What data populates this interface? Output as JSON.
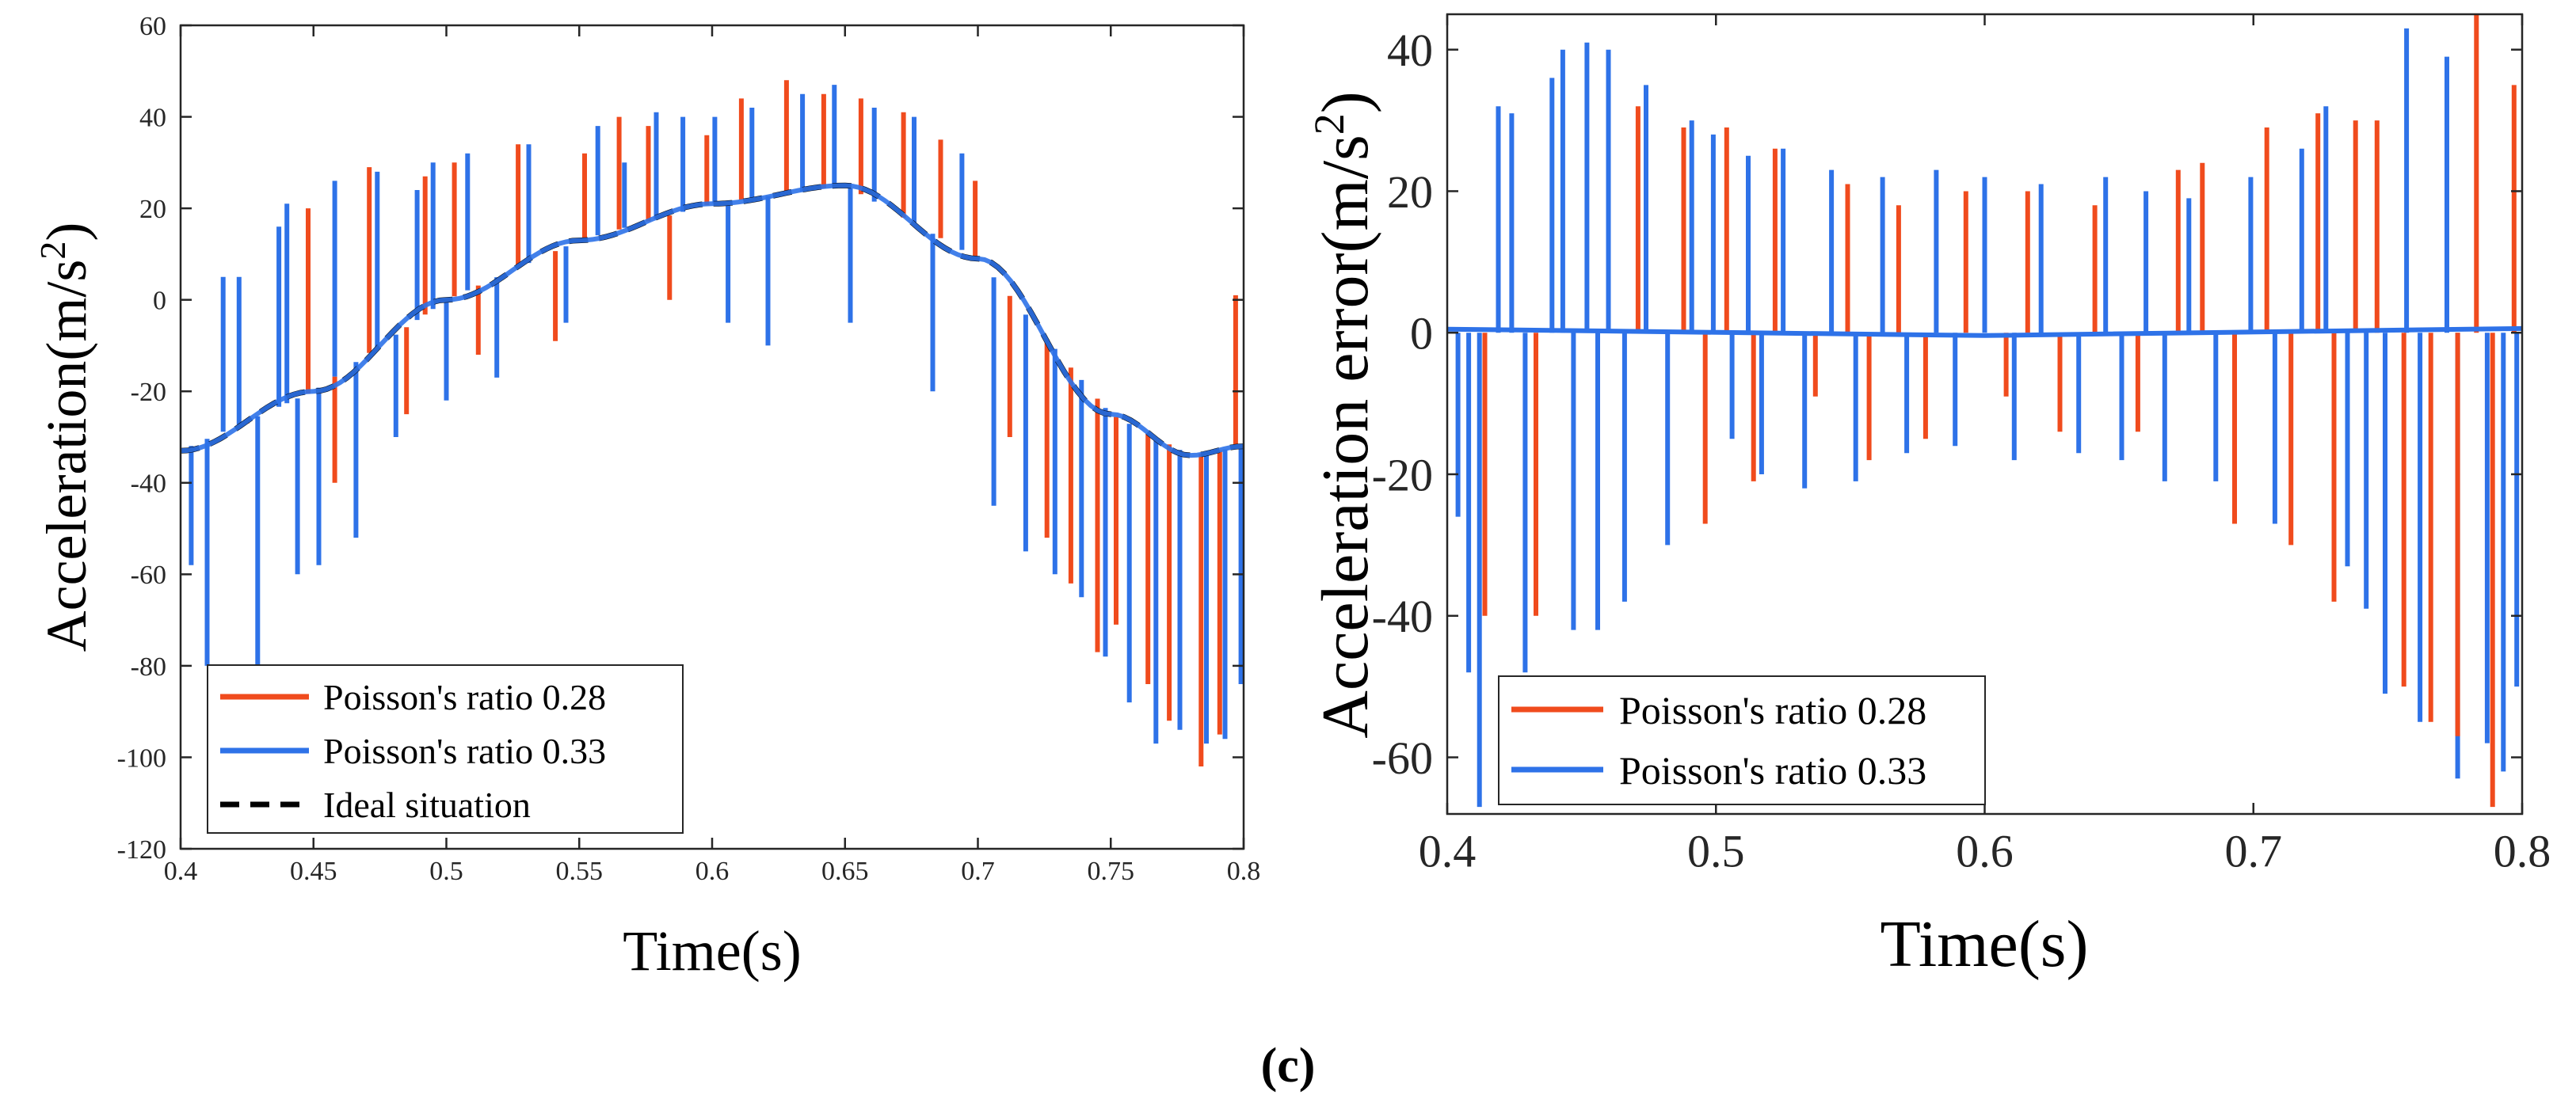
{
  "caption": "(c)",
  "colors": {
    "series_028": "#f04b1d",
    "series_033": "#2e72e8",
    "ideal": "#000000",
    "axis": "#262626"
  },
  "chart_data": [
    {
      "type": "line",
      "xlabel": "Time(s)",
      "ylabel": "Acceleration(m/s²)",
      "ylabel_main": "Acceleration(m/s",
      "ylabel_sup": "2",
      "ylabel_end": ")",
      "xlim": [
        0.4,
        0.8
      ],
      "ylim": [
        -120,
        60
      ],
      "xticks": [
        0.4,
        0.45,
        0.5,
        0.55,
        0.6,
        0.65,
        0.7,
        0.75,
        0.8
      ],
      "yticks": [
        -120,
        -100,
        -80,
        -60,
        -40,
        -20,
        0,
        20,
        40,
        60
      ],
      "grid": false,
      "legend": "bottom-left",
      "legend_entries": [
        "Poisson's ratio 0.28",
        "Poisson's ratio 0.33",
        "Ideal situation"
      ],
      "ideal_curve": {
        "name": "Ideal situation",
        "x": [
          0.4,
          0.45,
          0.5,
          0.55,
          0.6,
          0.65,
          0.7,
          0.75,
          0.78,
          0.8
        ],
        "y": [
          -33,
          -20,
          0,
          13,
          21,
          25,
          9,
          -25,
          -34,
          -32
        ]
      },
      "series": [
        {
          "name": "Poisson's ratio 0.28",
          "color": "#f04b1d",
          "spikes": [
            {
              "x": 0.425,
              "y": -27
            },
            {
              "x": 0.448,
              "y": 20
            },
            {
              "x": 0.458,
              "y": -40
            },
            {
              "x": 0.471,
              "y": 29
            },
            {
              "x": 0.485,
              "y": -25
            },
            {
              "x": 0.492,
              "y": 27
            },
            {
              "x": 0.503,
              "y": 30
            },
            {
              "x": 0.512,
              "y": -12
            },
            {
              "x": 0.527,
              "y": 34
            },
            {
              "x": 0.541,
              "y": -9
            },
            {
              "x": 0.552,
              "y": 32
            },
            {
              "x": 0.565,
              "y": 40
            },
            {
              "x": 0.576,
              "y": 38
            },
            {
              "x": 0.584,
              "y": 0
            },
            {
              "x": 0.598,
              "y": 36
            },
            {
              "x": 0.611,
              "y": 44
            },
            {
              "x": 0.628,
              "y": 48
            },
            {
              "x": 0.642,
              "y": 45
            },
            {
              "x": 0.656,
              "y": 44
            },
            {
              "x": 0.672,
              "y": 41
            },
            {
              "x": 0.686,
              "y": 35
            },
            {
              "x": 0.699,
              "y": 26
            },
            {
              "x": 0.712,
              "y": -30
            },
            {
              "x": 0.726,
              "y": -52
            },
            {
              "x": 0.735,
              "y": -62
            },
            {
              "x": 0.745,
              "y": -77
            },
            {
              "x": 0.752,
              "y": -71
            },
            {
              "x": 0.764,
              "y": -84
            },
            {
              "x": 0.772,
              "y": -92
            },
            {
              "x": 0.784,
              "y": -102
            },
            {
              "x": 0.791,
              "y": -95
            },
            {
              "x": 0.797,
              "y": 1
            }
          ]
        },
        {
          "name": "Poisson's ratio 0.33",
          "color": "#2e72e8",
          "spikes": [
            {
              "x": 0.404,
              "y": -58
            },
            {
              "x": 0.41,
              "y": -80
            },
            {
              "x": 0.416,
              "y": 5
            },
            {
              "x": 0.422,
              "y": 5
            },
            {
              "x": 0.429,
              "y": -80
            },
            {
              "x": 0.437,
              "y": 16
            },
            {
              "x": 0.44,
              "y": 21
            },
            {
              "x": 0.444,
              "y": -60
            },
            {
              "x": 0.452,
              "y": -58
            },
            {
              "x": 0.458,
              "y": 26
            },
            {
              "x": 0.466,
              "y": -52
            },
            {
              "x": 0.474,
              "y": 28
            },
            {
              "x": 0.481,
              "y": -30
            },
            {
              "x": 0.489,
              "y": 24
            },
            {
              "x": 0.495,
              "y": 30
            },
            {
              "x": 0.5,
              "y": -22
            },
            {
              "x": 0.508,
              "y": 32
            },
            {
              "x": 0.519,
              "y": -17
            },
            {
              "x": 0.531,
              "y": 34
            },
            {
              "x": 0.545,
              "y": -5
            },
            {
              "x": 0.557,
              "y": 38
            },
            {
              "x": 0.567,
              "y": 30
            },
            {
              "x": 0.579,
              "y": 41
            },
            {
              "x": 0.589,
              "y": 40
            },
            {
              "x": 0.601,
              "y": 40
            },
            {
              "x": 0.606,
              "y": -5
            },
            {
              "x": 0.615,
              "y": 42
            },
            {
              "x": 0.621,
              "y": -10
            },
            {
              "x": 0.634,
              "y": 45
            },
            {
              "x": 0.646,
              "y": 47
            },
            {
              "x": 0.652,
              "y": -5
            },
            {
              "x": 0.661,
              "y": 42
            },
            {
              "x": 0.676,
              "y": 40
            },
            {
              "x": 0.683,
              "y": -20
            },
            {
              "x": 0.694,
              "y": 32
            },
            {
              "x": 0.706,
              "y": -45
            },
            {
              "x": 0.718,
              "y": -55
            },
            {
              "x": 0.729,
              "y": -60
            },
            {
              "x": 0.739,
              "y": -65
            },
            {
              "x": 0.748,
              "y": -78
            },
            {
              "x": 0.757,
              "y": -88
            },
            {
              "x": 0.767,
              "y": -97
            },
            {
              "x": 0.776,
              "y": -94
            },
            {
              "x": 0.786,
              "y": -97
            },
            {
              "x": 0.793,
              "y": -96
            },
            {
              "x": 0.799,
              "y": -84
            }
          ]
        },
        {
          "name": "Ideal situation",
          "color": "#000000",
          "style": "dashed"
        }
      ]
    },
    {
      "type": "line",
      "xlabel": "Time(s)",
      "ylabel": "Acceleration error(m/s²)",
      "ylabel_main": "Acceleration error(m/s",
      "ylabel_sup": "2",
      "ylabel_end": ")",
      "xlim": [
        0.4,
        0.8
      ],
      "ylim": [
        -68,
        45
      ],
      "xticks": [
        0.4,
        0.5,
        0.6,
        0.7,
        0.8
      ],
      "yticks": [
        -60,
        -40,
        -20,
        0,
        20,
        40
      ],
      "grid": false,
      "legend": "bottom-left",
      "legend_entries": [
        "Poisson's ratio 0.28",
        "Poisson's ratio 0.33"
      ],
      "series": [
        {
          "name": "Poisson's ratio 0.28",
          "color": "#f04b1d",
          "spikes": [
            {
              "x": 0.414,
              "y": -40
            },
            {
              "x": 0.433,
              "y": -40
            },
            {
              "x": 0.471,
              "y": 32
            },
            {
              "x": 0.488,
              "y": 29
            },
            {
              "x": 0.496,
              "y": -27
            },
            {
              "x": 0.504,
              "y": 29
            },
            {
              "x": 0.514,
              "y": -21
            },
            {
              "x": 0.522,
              "y": 26
            },
            {
              "x": 0.537,
              "y": -9
            },
            {
              "x": 0.549,
              "y": 21
            },
            {
              "x": 0.557,
              "y": -18
            },
            {
              "x": 0.568,
              "y": 18
            },
            {
              "x": 0.578,
              "y": -15
            },
            {
              "x": 0.593,
              "y": 20
            },
            {
              "x": 0.608,
              "y": -9
            },
            {
              "x": 0.616,
              "y": 20
            },
            {
              "x": 0.628,
              "y": -14
            },
            {
              "x": 0.641,
              "y": 18
            },
            {
              "x": 0.657,
              "y": -14
            },
            {
              "x": 0.672,
              "y": 23
            },
            {
              "x": 0.681,
              "y": 24
            },
            {
              "x": 0.693,
              "y": -27
            },
            {
              "x": 0.705,
              "y": 29
            },
            {
              "x": 0.714,
              "y": -30
            },
            {
              "x": 0.724,
              "y": 31
            },
            {
              "x": 0.73,
              "y": -38
            },
            {
              "x": 0.738,
              "y": 30
            },
            {
              "x": 0.746,
              "y": 30
            },
            {
              "x": 0.756,
              "y": -50
            },
            {
              "x": 0.766,
              "y": -55
            },
            {
              "x": 0.776,
              "y": -57
            },
            {
              "x": 0.783,
              "y": 45
            },
            {
              "x": 0.789,
              "y": -67
            },
            {
              "x": 0.797,
              "y": 35
            }
          ]
        },
        {
          "name": "Poisson's ratio 0.33",
          "color": "#2e72e8",
          "spikes": [
            {
              "x": 0.404,
              "y": -26
            },
            {
              "x": 0.408,
              "y": -48
            },
            {
              "x": 0.412,
              "y": -67
            },
            {
              "x": 0.419,
              "y": 32
            },
            {
              "x": 0.424,
              "y": 31
            },
            {
              "x": 0.429,
              "y": -48
            },
            {
              "x": 0.439,
              "y": 36
            },
            {
              "x": 0.443,
              "y": 40
            },
            {
              "x": 0.447,
              "y": -42
            },
            {
              "x": 0.452,
              "y": 41
            },
            {
              "x": 0.456,
              "y": -42
            },
            {
              "x": 0.46,
              "y": 40
            },
            {
              "x": 0.466,
              "y": -38
            },
            {
              "x": 0.474,
              "y": 35
            },
            {
              "x": 0.482,
              "y": -30
            },
            {
              "x": 0.491,
              "y": 30
            },
            {
              "x": 0.499,
              "y": 28
            },
            {
              "x": 0.506,
              "y": -15
            },
            {
              "x": 0.512,
              "y": 25
            },
            {
              "x": 0.517,
              "y": -20
            },
            {
              "x": 0.525,
              "y": 26
            },
            {
              "x": 0.533,
              "y": -22
            },
            {
              "x": 0.543,
              "y": 23
            },
            {
              "x": 0.552,
              "y": -21
            },
            {
              "x": 0.562,
              "y": 22
            },
            {
              "x": 0.571,
              "y": -17
            },
            {
              "x": 0.582,
              "y": 23
            },
            {
              "x": 0.589,
              "y": -16
            },
            {
              "x": 0.6,
              "y": 22
            },
            {
              "x": 0.611,
              "y": -18
            },
            {
              "x": 0.621,
              "y": 21
            },
            {
              "x": 0.635,
              "y": -17
            },
            {
              "x": 0.645,
              "y": 22
            },
            {
              "x": 0.651,
              "y": -18
            },
            {
              "x": 0.66,
              "y": 20
            },
            {
              "x": 0.667,
              "y": -21
            },
            {
              "x": 0.676,
              "y": 19
            },
            {
              "x": 0.686,
              "y": -21
            },
            {
              "x": 0.699,
              "y": 22
            },
            {
              "x": 0.708,
              "y": -27
            },
            {
              "x": 0.718,
              "y": 26
            },
            {
              "x": 0.727,
              "y": 32
            },
            {
              "x": 0.735,
              "y": -33
            },
            {
              "x": 0.742,
              "y": -39
            },
            {
              "x": 0.749,
              "y": -51
            },
            {
              "x": 0.757,
              "y": 43
            },
            {
              "x": 0.762,
              "y": -55
            },
            {
              "x": 0.772,
              "y": 39
            },
            {
              "x": 0.776,
              "y": -63
            },
            {
              "x": 0.787,
              "y": -58
            },
            {
              "x": 0.793,
              "y": -62
            },
            {
              "x": 0.798,
              "y": -50
            }
          ]
        }
      ]
    }
  ]
}
